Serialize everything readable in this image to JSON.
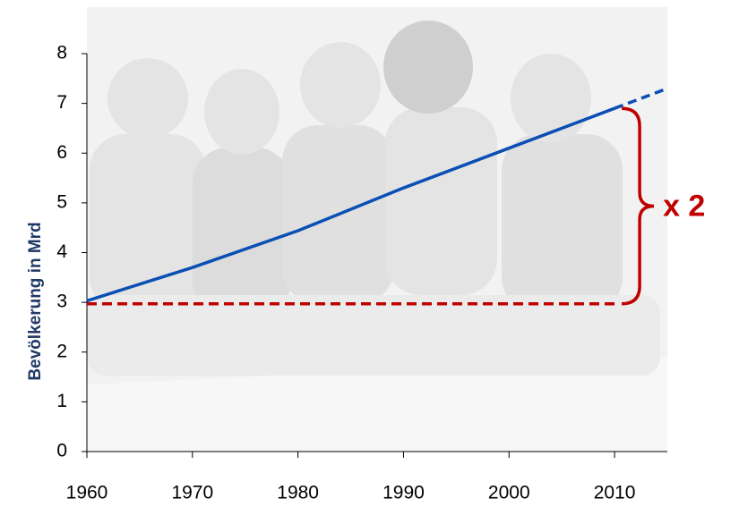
{
  "chart_data": {
    "type": "line",
    "ylabel": "Bevölkerung in Mrd",
    "xlim": [
      1960,
      2015
    ],
    "xticks": [
      1960,
      1970,
      1980,
      1990,
      2000,
      2010
    ],
    "ylim": [
      0,
      8
    ],
    "yticks": [
      0,
      1,
      2,
      3,
      4,
      5,
      6,
      7,
      8
    ],
    "series": [
      {
        "color": "#0a4fb4",
        "dashed": false,
        "x": [
          1960,
          1970,
          1980,
          1990,
          2000,
          2010
        ],
        "values": [
          3.03,
          3.7,
          4.44,
          5.3,
          6.1,
          6.9
        ]
      },
      {
        "color": "#0a4fb4",
        "dashed": true,
        "x": [
          2010,
          2015
        ],
        "values": [
          6.9,
          7.3
        ]
      }
    ],
    "reference_line": {
      "value": 2.97,
      "x": [
        1960,
        2010
      ],
      "color": "#c00000"
    },
    "annotation": {
      "text": "x 2",
      "color": "#c00000"
    }
  }
}
